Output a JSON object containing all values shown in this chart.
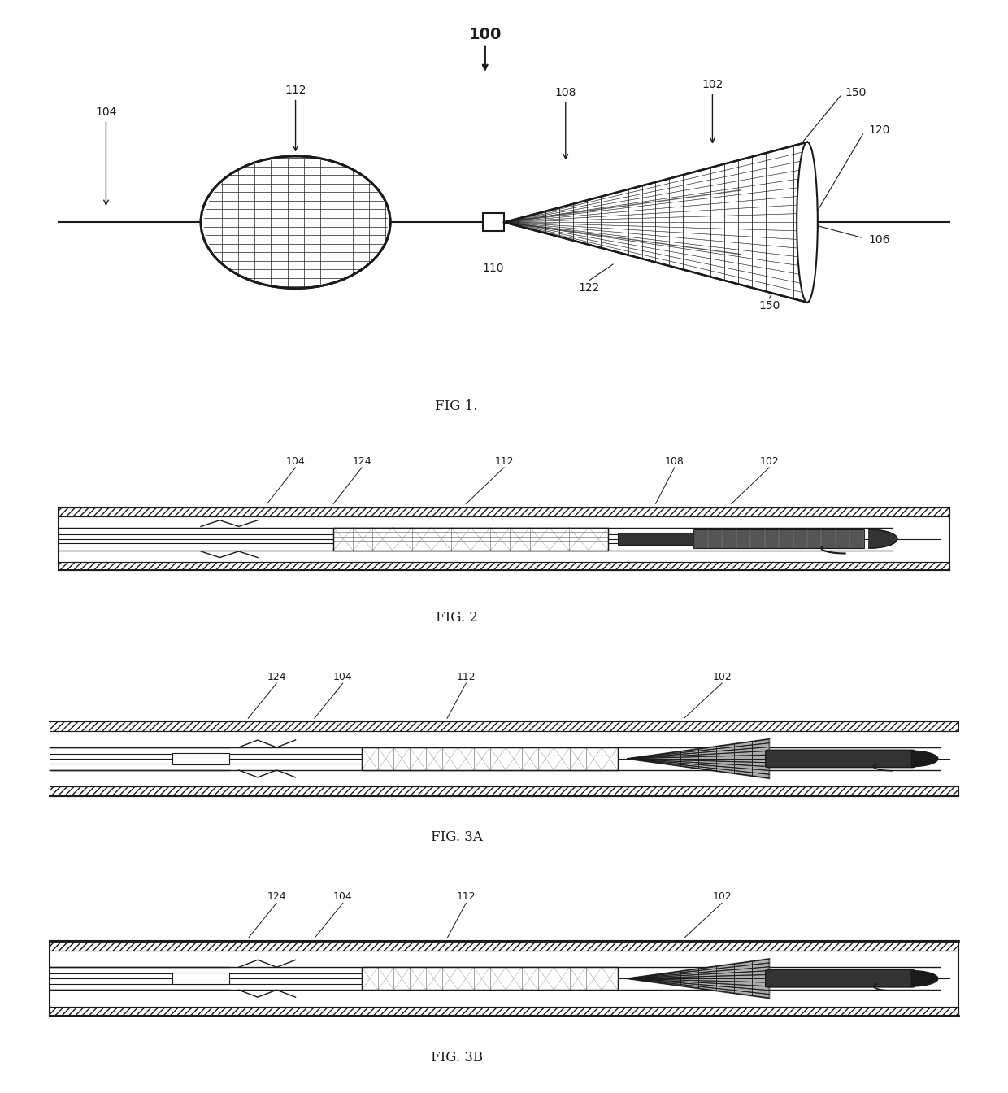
{
  "bg_color": "#ffffff",
  "lc": "#1a1a1a",
  "gray_dark": "#333333",
  "gray_mid": "#666666",
  "gray_light": "#aaaaaa",
  "gray_mesh": "#888888",
  "fig1_label": "FIG 1.",
  "fig2_label": "FIG. 2",
  "fig3a_label": "FIG. 3A",
  "fig3b_label": "FIG. 3B"
}
